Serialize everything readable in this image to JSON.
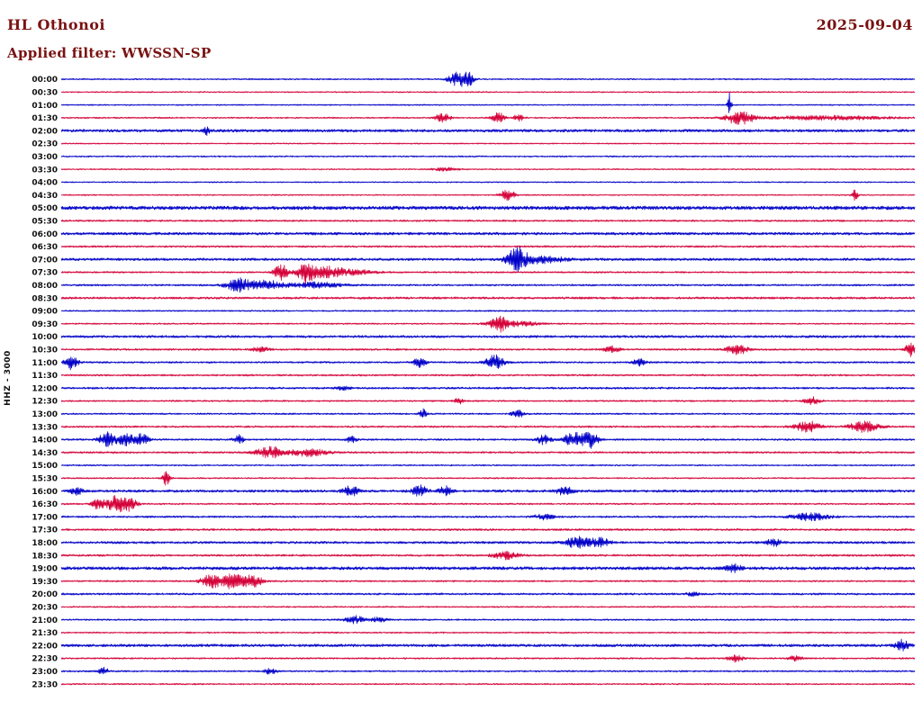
{
  "header": {
    "station": "HL Othonoi",
    "date": "2025-09-04",
    "filter": "Applied filter: WWSSN-SP"
  },
  "axis": {
    "left_label": "HHZ - 3000"
  },
  "chart_data": {
    "type": "line",
    "subtype": "helicorder-seismogram",
    "title": "HL Othonoi",
    "date": "2025-09-04",
    "filter": "WWSSN-SP",
    "channel_scale_label": "HHZ - 3000",
    "row_interval_minutes": 30,
    "rows_count": 48,
    "legend_position": "none",
    "grid": false,
    "colors": {
      "blue": "#0000c8",
      "red": "#d40038"
    },
    "amplitude_units": "arbitrary (trace px)",
    "row_format": "t = start time of 30-min row; color = trace color; n = background noise half-amplitude (px); ev = bursts as [position fraction 0-1 along row, peak amplitude px, gaussian width fraction]",
    "rows": [
      {
        "t": "00:00",
        "color": "blue",
        "n": 0.8,
        "ev": [
          [
            0.466,
            8,
            0.008
          ],
          [
            0.478,
            5,
            0.004
          ]
        ]
      },
      {
        "t": "00:30",
        "color": "red",
        "n": 0.7,
        "ev": []
      },
      {
        "t": "01:00",
        "color": "blue",
        "n": 0.7,
        "ev": [
          [
            0.783,
            13,
            0.0015
          ]
        ]
      },
      {
        "t": "01:30",
        "color": "red",
        "n": 0.8,
        "ev": [
          [
            0.447,
            5,
            0.006
          ],
          [
            0.512,
            6,
            0.005
          ],
          [
            0.536,
            4,
            0.004
          ],
          [
            0.795,
            7,
            0.012
          ],
          [
            0.9,
            2.2,
            0.05
          ]
        ]
      },
      {
        "t": "02:00",
        "color": "blue",
        "n": 1.5,
        "ev": [
          [
            0.171,
            4,
            0.003
          ]
        ]
      },
      {
        "t": "02:30",
        "color": "red",
        "n": 0.7,
        "ev": []
      },
      {
        "t": "03:00",
        "color": "blue",
        "n": 0.8,
        "ev": []
      },
      {
        "t": "03:30",
        "color": "red",
        "n": 0.7,
        "ev": [
          [
            0.45,
            1.8,
            0.01
          ]
        ]
      },
      {
        "t": "04:00",
        "color": "blue",
        "n": 0.7,
        "ev": []
      },
      {
        "t": "04:30",
        "color": "red",
        "n": 0.7,
        "ev": [
          [
            0.523,
            6,
            0.006
          ],
          [
            0.93,
            9,
            0.002
          ]
        ]
      },
      {
        "t": "05:00",
        "color": "blue",
        "n": 2.0,
        "ev": []
      },
      {
        "t": "05:30",
        "color": "red",
        "n": 1.0,
        "ev": []
      },
      {
        "t": "06:00",
        "color": "blue",
        "n": 1.5,
        "ev": []
      },
      {
        "t": "06:30",
        "color": "red",
        "n": 1.0,
        "ev": []
      },
      {
        "t": "07:00",
        "color": "blue",
        "n": 1.4,
        "ev": [
          [
            0.533,
            12,
            0.008
          ],
          [
            0.56,
            4,
            0.02
          ]
        ]
      },
      {
        "t": "07:30",
        "color": "red",
        "n": 0.9,
        "ev": [
          [
            0.258,
            9,
            0.006
          ],
          [
            0.287,
            12,
            0.007
          ],
          [
            0.31,
            5,
            0.01
          ],
          [
            0.335,
            3.5,
            0.02
          ]
        ]
      },
      {
        "t": "08:00",
        "color": "blue",
        "n": 1.0,
        "ev": [
          [
            0.207,
            7,
            0.01
          ],
          [
            0.24,
            5,
            0.015
          ],
          [
            0.3,
            3,
            0.02
          ]
        ]
      },
      {
        "t": "08:30",
        "color": "red",
        "n": 1.2,
        "ev": []
      },
      {
        "t": "09:00",
        "color": "blue",
        "n": 0.8,
        "ev": []
      },
      {
        "t": "09:30",
        "color": "red",
        "n": 0.8,
        "ev": [
          [
            0.512,
            8,
            0.006
          ],
          [
            0.53,
            3,
            0.02
          ]
        ]
      },
      {
        "t": "10:00",
        "color": "blue",
        "n": 1.3,
        "ev": []
      },
      {
        "t": "10:30",
        "color": "red",
        "n": 1.0,
        "ev": [
          [
            0.234,
            4,
            0.006
          ],
          [
            0.645,
            4,
            0.006
          ],
          [
            0.792,
            6,
            0.008
          ],
          [
            0.995,
            8,
            0.004
          ]
        ]
      },
      {
        "t": "11:00",
        "color": "blue",
        "n": 1.0,
        "ev": [
          [
            0.012,
            8,
            0.005
          ],
          [
            0.42,
            5,
            0.005
          ],
          [
            0.508,
            8,
            0.007
          ],
          [
            0.677,
            4,
            0.005
          ]
        ]
      },
      {
        "t": "11:30",
        "color": "red",
        "n": 1.0,
        "ev": []
      },
      {
        "t": "12:00",
        "color": "blue",
        "n": 1.1,
        "ev": [
          [
            0.33,
            2.2,
            0.005
          ]
        ]
      },
      {
        "t": "12:30",
        "color": "red",
        "n": 0.9,
        "ev": [
          [
            0.466,
            3,
            0.004
          ],
          [
            0.88,
            4,
            0.006
          ]
        ]
      },
      {
        "t": "13:00",
        "color": "blue",
        "n": 0.9,
        "ev": [
          [
            0.424,
            5,
            0.003
          ],
          [
            0.535,
            5,
            0.005
          ]
        ]
      },
      {
        "t": "13:30",
        "color": "red",
        "n": 1.0,
        "ev": [
          [
            0.875,
            6,
            0.01
          ],
          [
            0.94,
            6,
            0.012
          ]
        ]
      },
      {
        "t": "14:00",
        "color": "blue",
        "n": 1.0,
        "ev": [
          [
            0.053,
            8,
            0.006
          ],
          [
            0.075,
            8,
            0.008
          ],
          [
            0.095,
            6,
            0.005
          ],
          [
            0.208,
            5,
            0.004
          ],
          [
            0.34,
            4,
            0.004
          ],
          [
            0.565,
            5,
            0.006
          ],
          [
            0.6,
            8,
            0.008
          ],
          [
            0.62,
            9,
            0.006
          ]
        ]
      },
      {
        "t": "14:30",
        "color": "red",
        "n": 1.0,
        "ev": [
          [
            0.245,
            6,
            0.012
          ],
          [
            0.29,
            4,
            0.015
          ]
        ]
      },
      {
        "t": "15:00",
        "color": "blue",
        "n": 0.8,
        "ev": []
      },
      {
        "t": "15:30",
        "color": "red",
        "n": 0.8,
        "ev": [
          [
            0.123,
            8,
            0.003
          ]
        ]
      },
      {
        "t": "16:00",
        "color": "blue",
        "n": 1.4,
        "ev": [
          [
            0.018,
            5,
            0.004
          ],
          [
            0.34,
            6,
            0.006
          ],
          [
            0.42,
            6,
            0.006
          ],
          [
            0.45,
            5,
            0.005
          ],
          [
            0.59,
            5,
            0.006
          ]
        ]
      },
      {
        "t": "16:30",
        "color": "red",
        "n": 0.9,
        "ev": [
          [
            0.044,
            6,
            0.005
          ],
          [
            0.065,
            9,
            0.008
          ],
          [
            0.082,
            7,
            0.005
          ]
        ]
      },
      {
        "t": "17:00",
        "color": "blue",
        "n": 1.0,
        "ev": [
          [
            0.566,
            3,
            0.008
          ],
          [
            0.877,
            4,
            0.015
          ]
        ]
      },
      {
        "t": "17:30",
        "color": "red",
        "n": 1.1,
        "ev": []
      },
      {
        "t": "18:00",
        "color": "blue",
        "n": 1.3,
        "ev": [
          [
            0.605,
            6,
            0.01
          ],
          [
            0.632,
            5,
            0.008
          ],
          [
            0.835,
            4,
            0.006
          ]
        ]
      },
      {
        "t": "18:30",
        "color": "red",
        "n": 1.1,
        "ev": [
          [
            0.52,
            4,
            0.01
          ]
        ]
      },
      {
        "t": "19:00",
        "color": "blue",
        "n": 1.7,
        "ev": [
          [
            0.788,
            4,
            0.006
          ]
        ]
      },
      {
        "t": "19:30",
        "color": "red",
        "n": 0.9,
        "ev": [
          [
            0.175,
            7,
            0.008
          ],
          [
            0.2,
            8,
            0.01
          ],
          [
            0.225,
            6,
            0.008
          ]
        ]
      },
      {
        "t": "20:00",
        "color": "blue",
        "n": 1.1,
        "ev": [
          [
            0.74,
            3,
            0.004
          ]
        ]
      },
      {
        "t": "20:30",
        "color": "red",
        "n": 0.8,
        "ev": []
      },
      {
        "t": "21:00",
        "color": "blue",
        "n": 0.9,
        "ev": [
          [
            0.345,
            4,
            0.008
          ],
          [
            0.372,
            3,
            0.006
          ]
        ]
      },
      {
        "t": "21:30",
        "color": "red",
        "n": 0.8,
        "ev": []
      },
      {
        "t": "22:00",
        "color": "blue",
        "n": 1.5,
        "ev": [
          [
            0.985,
            6,
            0.005
          ]
        ]
      },
      {
        "t": "22:30",
        "color": "red",
        "n": 0.9,
        "ev": [
          [
            0.79,
            4,
            0.006
          ],
          [
            0.86,
            3,
            0.005
          ]
        ]
      },
      {
        "t": "23:00",
        "color": "blue",
        "n": 0.9,
        "ev": [
          [
            0.05,
            4,
            0.004
          ],
          [
            0.245,
            3,
            0.005
          ]
        ]
      },
      {
        "t": "23:30",
        "color": "red",
        "n": 0.8,
        "ev": []
      }
    ]
  }
}
